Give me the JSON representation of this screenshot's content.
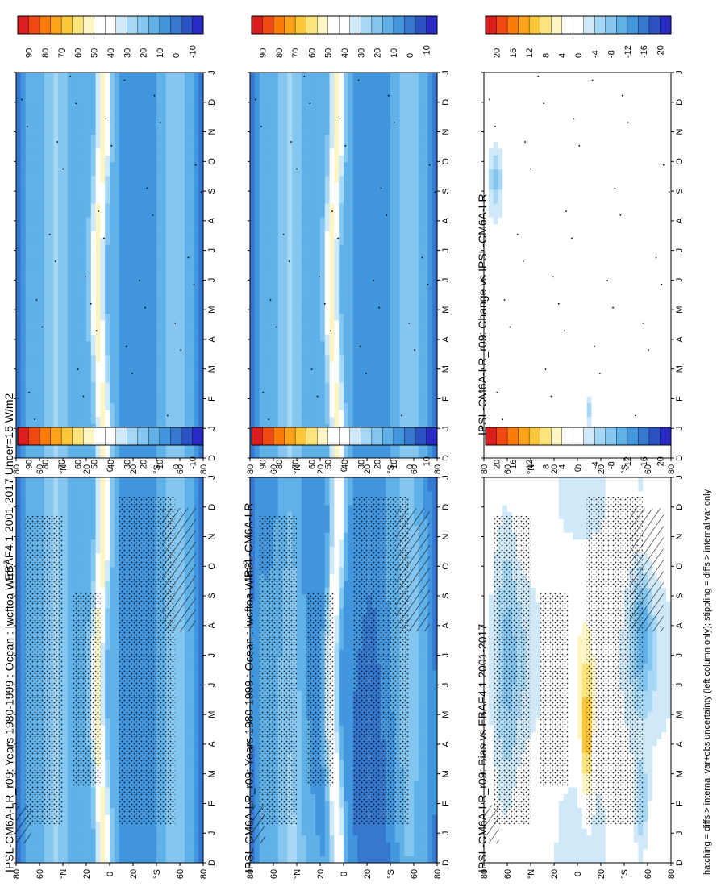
{
  "footnote": "hatching = diffs > internal var+obs uncertainty (left column only); stippling = diffs > internal var only",
  "month_labels": [
    "D",
    "J",
    "F",
    "M",
    "A",
    "M",
    "J",
    "J",
    "A",
    "S",
    "O",
    "N",
    "D",
    "J"
  ],
  "lat_labels": [
    "80",
    "60",
    "°N",
    "20",
    "0",
    "20",
    "°S",
    "60",
    "80"
  ],
  "colorbars": {
    "absolute": {
      "labels": [
        "90",
        "80",
        "70",
        "60",
        "50",
        "40",
        "30",
        "20",
        "10",
        "0",
        "-10"
      ],
      "colors": [
        "#dc1e1e",
        "#f04a12",
        "#fa7a0a",
        "#fda21a",
        "#fdc73a",
        "#fbe47a",
        "#fdf6c4",
        "#ffffff",
        "#ffffff",
        "#cfe9f9",
        "#a6d7f4",
        "#84c6ef",
        "#5fb1e8",
        "#4196de",
        "#3778cf",
        "#2c53c4",
        "#2a2bc4"
      ]
    },
    "difference": {
      "labels": [
        "20",
        "16",
        "12",
        "8",
        "4",
        "0",
        "-4",
        "-8",
        "-12",
        "-16",
        "-20"
      ],
      "colors": [
        "#dc1e1e",
        "#f04a12",
        "#fa7a0a",
        "#fda21a",
        "#fdc73a",
        "#fbe47a",
        "#fdf6c4",
        "#ffffff",
        "#ffffff",
        "#cfe9f9",
        "#a6d7f4",
        "#84c6ef",
        "#5fb1e8",
        "#4196de",
        "#3778cf",
        "#2c53c4",
        "#2a2bc4"
      ]
    }
  },
  "panels": [
    {
      "id": "model-left",
      "title": "IPSL-CM6A-LR_r09: Years 1980-1999 : Ocean : lwcftoa W m",
      "title_sup": "-2",
      "field": "absolute",
      "hatching": true,
      "stippling": "dense"
    },
    {
      "id": "model-right",
      "title": "IPSL-CM6A-LR_r09: Years 1980-1999 : Ocean : lwcftoa W m",
      "title_sup": "-2",
      "field": "absolute",
      "hatching": false,
      "stippling": "sparse"
    },
    {
      "id": "obs-left",
      "title": "EBAF4.1 2001-2017 Uncer=15 W/m2",
      "title_sup": "",
      "field": "absolute_obs",
      "hatching": true,
      "stippling": "dense"
    },
    {
      "id": "obs-right",
      "title": "IPSL-CM6A-LR",
      "title_sup": "",
      "field": "absolute",
      "hatching": false,
      "stippling": "sparse"
    },
    {
      "id": "bias-left",
      "title": "IPSL-CM6A-LR_r09: Bias vs EBAF4.1 2001-2017",
      "title_sup": "",
      "field": "bias",
      "hatching": true,
      "stippling": "dense"
    },
    {
      "id": "change-right",
      "title": "IPSL-CM6A-LR_r09: Change vs IPSL-CM6A-LR",
      "title_sup": "",
      "field": "change",
      "hatching": false,
      "stippling": "sparse"
    }
  ],
  "chart_data": [
    {
      "type": "heatmap",
      "panel": "model-left",
      "x": "month (D..J)",
      "y": "latitude (80N..80S)",
      "z": "lwcftoa W m-2",
      "levels": [
        -10,
        0,
        10,
        20,
        30,
        40,
        50,
        60,
        70,
        80,
        90
      ],
      "features": {
        "itcz_max_lat": "~8N",
        "itcz_max_value": 50,
        "southern_subtropics": "<20",
        "polar_values": "-5..5"
      }
    },
    {
      "type": "heatmap",
      "panel": "model-right",
      "levels": [
        -10,
        0,
        10,
        20,
        30,
        40,
        50,
        60,
        70,
        80,
        90
      ]
    },
    {
      "type": "heatmap",
      "panel": "obs-left",
      "levels": [
        -10,
        0,
        10,
        20,
        30,
        40,
        50,
        60,
        70,
        80,
        90
      ]
    },
    {
      "type": "heatmap",
      "panel": "obs-right",
      "levels": [
        -10,
        0,
        10,
        20,
        30,
        40,
        50,
        60,
        70,
        80,
        90
      ]
    },
    {
      "type": "heatmap",
      "panel": "bias-left",
      "levels": [
        -20,
        -16,
        -12,
        -8,
        -4,
        0,
        4,
        8,
        12,
        16,
        20
      ]
    },
    {
      "type": "heatmap",
      "panel": "change-right",
      "levels": [
        -20,
        -16,
        -12,
        -8,
        -4,
        0,
        4,
        8,
        12,
        16,
        20
      ]
    }
  ]
}
